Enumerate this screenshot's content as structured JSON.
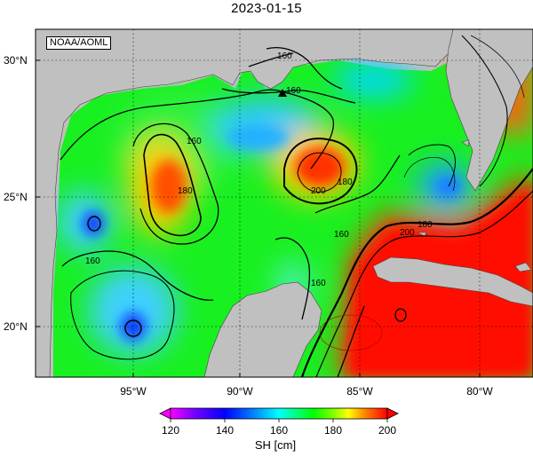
{
  "title": "2023-01-15",
  "attribution": "NOAA/AOML",
  "map": {
    "variable": "SH",
    "units": "cm",
    "lon_range": [
      -98,
      -78
    ],
    "lat_range": [
      18,
      31
    ],
    "lon_ticks": [
      "95°W",
      "90°W",
      "85°W",
      "80°W"
    ],
    "lat_ticks": [
      "30°N",
      "25°N",
      "20°N"
    ],
    "grid": "dotted",
    "land_color": "#c0c0c0",
    "contour_labels": [
      "160",
      "160",
      "160",
      "160",
      "160",
      "160",
      "180",
      "180",
      "200",
      "180",
      "200",
      "160",
      "180",
      "160"
    ],
    "marker": "buoy-triangle"
  },
  "colorbar": {
    "label": "SH [cm]",
    "ticks": [
      "120",
      "140",
      "160",
      "180",
      "200"
    ],
    "min": 120,
    "max": 200,
    "colors": [
      "#ff00ff",
      "#8000ff",
      "#0000ff",
      "#0080ff",
      "#00ffff",
      "#00ff80",
      "#00ff00",
      "#80ff00",
      "#ffff00",
      "#ff8000",
      "#ff0000"
    ]
  }
}
